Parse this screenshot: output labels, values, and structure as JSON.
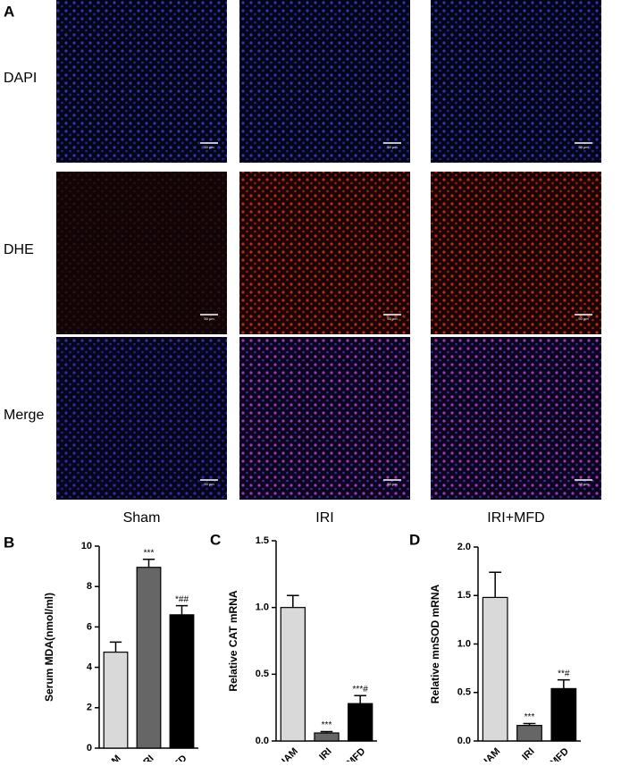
{
  "panel_a": {
    "letter": "A",
    "rows": [
      "DAPI",
      "DHE",
      "Merge"
    ],
    "columns": [
      "Sham",
      "IRI",
      "IRI+MFD"
    ],
    "scale_bar": "50 μm"
  },
  "chart_data": [
    {
      "type": "bar",
      "letter": "B",
      "ylabel": "Serum MDA(nmol/ml)",
      "categories": [
        "SHAM",
        "IRI",
        "MFD"
      ],
      "values": [
        4.75,
        8.95,
        6.6
      ],
      "errors": [
        0.5,
        0.4,
        0.45
      ],
      "annotations": [
        null,
        "***",
        "*##"
      ],
      "colors": [
        "#d9d9d9",
        "#666666",
        "#000000"
      ],
      "ylim": [
        0,
        10
      ],
      "yticks": [
        0,
        2,
        4,
        6,
        8,
        10
      ]
    },
    {
      "type": "bar",
      "letter": "C",
      "ylabel": "Relative CAT mRNA",
      "categories": [
        "SHAM",
        "IRI",
        "IRI+MFD"
      ],
      "values": [
        1.0,
        0.06,
        0.28
      ],
      "errors": [
        0.09,
        0.01,
        0.06
      ],
      "annotations": [
        null,
        "***",
        "***#"
      ],
      "colors": [
        "#d9d9d9",
        "#666666",
        "#000000"
      ],
      "ylim": [
        0,
        1.5
      ],
      "yticks": [
        {
          "value": 0,
          "label": "0.0"
        },
        {
          "value": 0.5,
          "label": "0.5"
        },
        {
          "value": 1,
          "label": "1.0"
        },
        {
          "value": 1.5,
          "label": "1.5"
        }
      ]
    },
    {
      "type": "bar",
      "letter": "D",
      "ylabel": "Relative mnSOD mRNA",
      "categories": [
        "SHAM",
        "IRI",
        "IRI+MFD"
      ],
      "values": [
        1.48,
        0.16,
        0.54
      ],
      "errors": [
        0.26,
        0.02,
        0.09
      ],
      "annotations": [
        null,
        "***",
        "**#"
      ],
      "colors": [
        "#d9d9d9",
        "#666666",
        "#000000"
      ],
      "ylim": [
        0,
        2
      ],
      "yticks": [
        {
          "value": 0,
          "label": "0.0"
        },
        {
          "value": 0.5,
          "label": "0.5"
        },
        {
          "value": 1,
          "label": "1.0"
        },
        {
          "value": 1.5,
          "label": "1.5"
        },
        {
          "value": 2,
          "label": "2.0"
        }
      ]
    }
  ]
}
